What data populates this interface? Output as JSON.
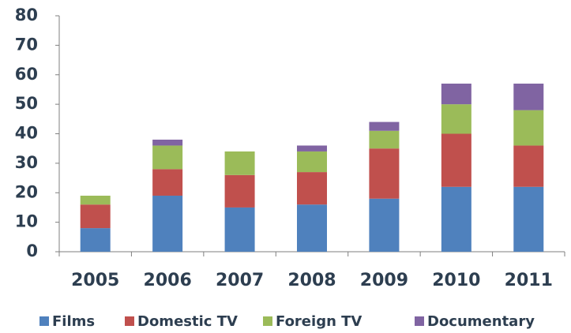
{
  "chart_data": {
    "type": "stacked_bar",
    "categories": [
      "2005",
      "2006",
      "2007",
      "2008",
      "2009",
      "2010",
      "2011"
    ],
    "series": [
      {
        "name": "Films",
        "color": "#4f81bd",
        "values": [
          8,
          19,
          15,
          16,
          18,
          22,
          22
        ]
      },
      {
        "name": "Domestic TV",
        "color": "#c0504d",
        "values": [
          8,
          9,
          11,
          11,
          17,
          18,
          14
        ]
      },
      {
        "name": "Foreign TV",
        "color": "#9bbb59",
        "values": [
          3,
          8,
          8,
          7,
          6,
          10,
          12
        ]
      },
      {
        "name": "Documentary",
        "color": "#8064a2",
        "values": [
          0,
          2,
          0,
          2,
          3,
          7,
          9
        ]
      }
    ],
    "ylim": [
      0,
      80
    ],
    "yticks": [
      0,
      10,
      20,
      30,
      40,
      50,
      60,
      70,
      80
    ],
    "grid": false,
    "legend": "bottom"
  }
}
